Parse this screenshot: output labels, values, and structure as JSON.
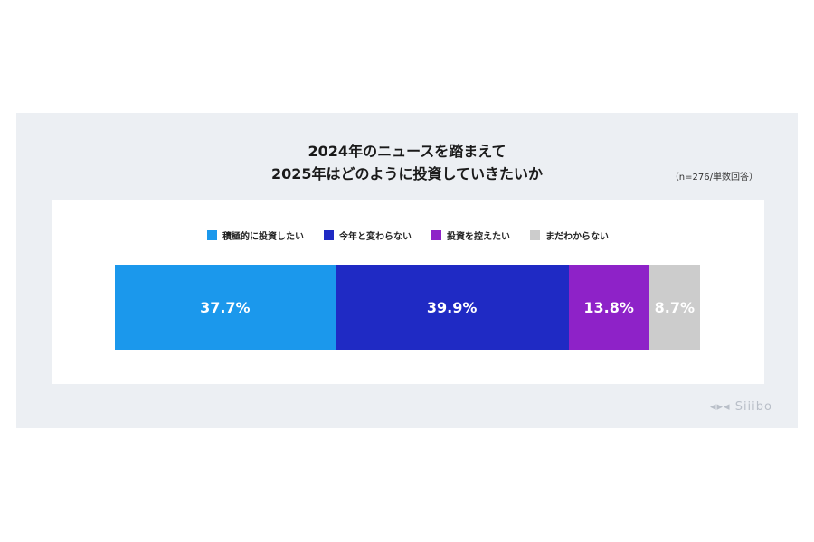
{
  "chart_data": {
    "type": "bar",
    "orientation": "horizontal-stacked",
    "title_lines": [
      "2024年のニュースを踏まえて",
      "2025年はどのように投資していきたいか"
    ],
    "note": "（n=276/単数回答）",
    "legend_position": "top",
    "series": [
      {
        "name": "積極的に投資したい",
        "value": 37.7,
        "label": "37.7%",
        "color": "#1b98ec"
      },
      {
        "name": "今年と変わらない",
        "value": 39.9,
        "label": "39.9%",
        "color": "#1f2ac4"
      },
      {
        "name": "投資を控えたい",
        "value": 13.8,
        "label": "13.8%",
        "color": "#8e22c8"
      },
      {
        "name": "まだわからない",
        "value": 8.7,
        "label": "8.7%",
        "color": "#cccccc"
      }
    ]
  },
  "logo": "Siiibo"
}
